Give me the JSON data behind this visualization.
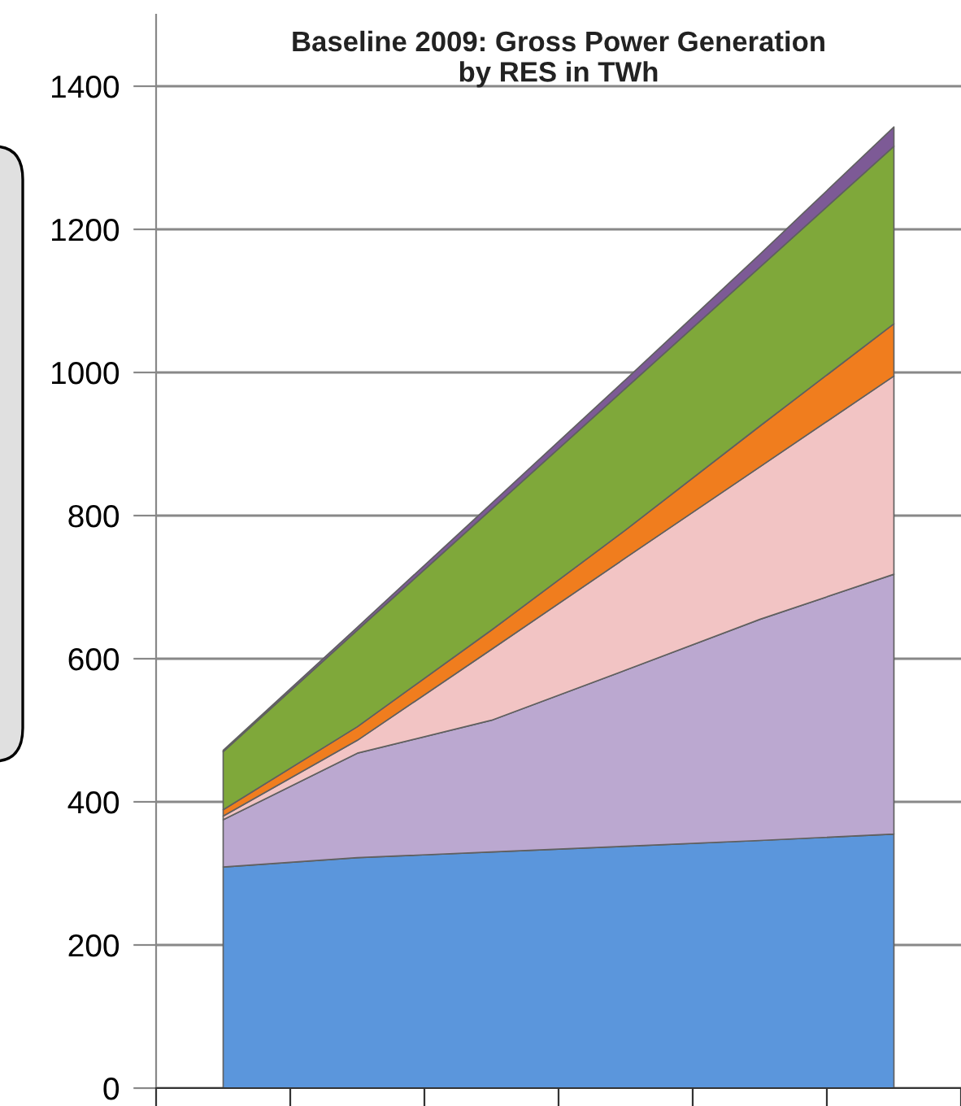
{
  "chart_data": {
    "type": "area",
    "stacked": true,
    "title": "Baseline 2009: Gross Power Generation\nby RES in TWh",
    "categories": [
      null,
      null,
      null,
      null,
      null,
      null
    ],
    "series": [
      {
        "color": "#5b96dc",
        "values": [
          309,
          322,
          330,
          338,
          346,
          355
        ]
      },
      {
        "color": "#bba8d0",
        "values": [
          66,
          146,
          184,
          246,
          309,
          363
        ]
      },
      {
        "color": "#f2c4c4",
        "values": [
          5,
          18,
          99,
          157,
          213,
          277
        ]
      },
      {
        "color": "#f07d1e",
        "values": [
          9,
          19,
          27,
          39,
          57,
          73
        ]
      },
      {
        "color": "#7fa83a",
        "values": [
          81,
          135,
          169,
          198,
          222,
          248
        ]
      },
      {
        "color": "#7d5a96",
        "values": [
          2,
          4,
          8,
          12,
          18,
          27
        ]
      }
    ],
    "ylim": [
      0,
      1500
    ],
    "yticks": [
      0,
      200,
      400,
      600,
      800,
      1000,
      1200,
      1400
    ],
    "grid": "y",
    "legend": false
  }
}
